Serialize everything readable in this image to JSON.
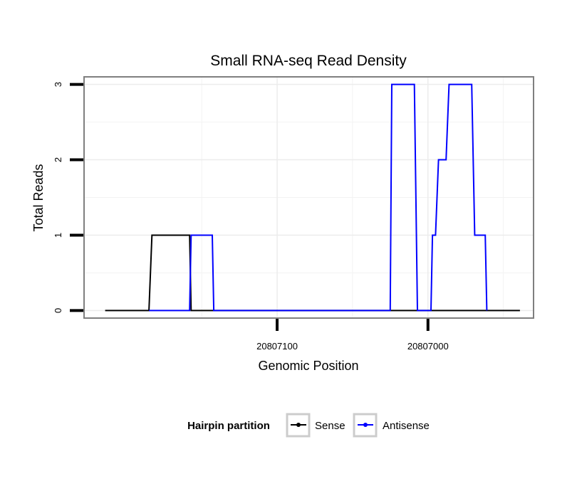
{
  "chart_data": {
    "type": "line",
    "title": "Small RNA-seq Read Density",
    "xlabel": "Genomic Position",
    "ylabel": "Total Reads",
    "x_reversed": true,
    "xlim": [
      20807228,
      20806930
    ],
    "ylim": [
      -0.1,
      3.1
    ],
    "x_ticks": [
      {
        "value": 20807100,
        "label": "20807100"
      },
      {
        "value": 20807000,
        "label": "20807000"
      }
    ],
    "x_minor_grid": [
      20807150,
      20807050,
      20806950
    ],
    "y_ticks": [
      {
        "value": 0,
        "label": "0"
      },
      {
        "value": 1,
        "label": "1"
      },
      {
        "value": 2,
        "label": "2"
      },
      {
        "value": 3,
        "label": "3"
      }
    ],
    "y_minor_grid": [
      0.5,
      1.5,
      2.5
    ],
    "legend": {
      "title": "Hairpin partition",
      "position": "bottom"
    },
    "series": [
      {
        "name": "Sense",
        "color": "#000000",
        "points": [
          [
            20807214,
            0
          ],
          [
            20807185,
            0
          ],
          [
            20807183,
            1
          ],
          [
            20807158,
            1
          ],
          [
            20807157,
            0
          ],
          [
            20806939,
            0
          ]
        ]
      },
      {
        "name": "Antisense",
        "color": "#0000ff",
        "points": [
          [
            20807185,
            0
          ],
          [
            20807158,
            0
          ],
          [
            20807157,
            1
          ],
          [
            20807143,
            1
          ],
          [
            20807142,
            0
          ],
          [
            20807025,
            0
          ],
          [
            20807024,
            3
          ],
          [
            20807009,
            3
          ],
          [
            20807007,
            0
          ],
          [
            20806998,
            0
          ],
          [
            20806997,
            1
          ],
          [
            20806995,
            1
          ],
          [
            20806993,
            2
          ],
          [
            20806988,
            2
          ],
          [
            20806986,
            3
          ],
          [
            20806971,
            3
          ],
          [
            20806969,
            1
          ],
          [
            20806962,
            1
          ],
          [
            20806961,
            0
          ]
        ]
      }
    ]
  }
}
